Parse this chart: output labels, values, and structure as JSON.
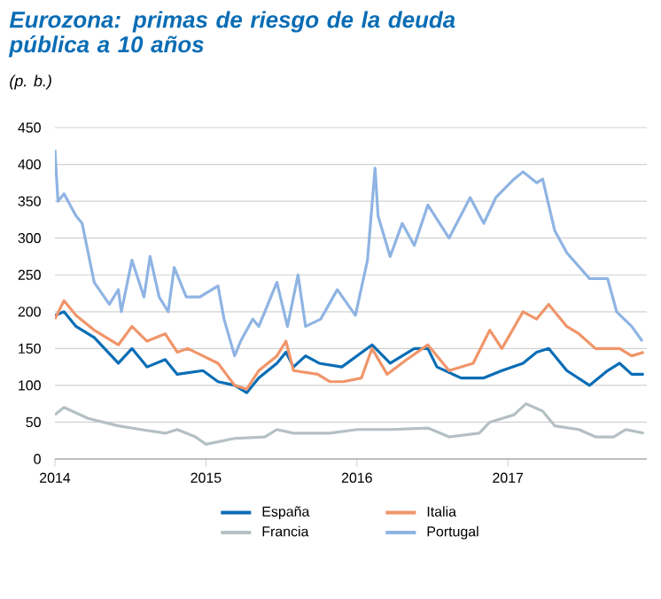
{
  "chart_data": {
    "type": "line",
    "title": "Eurozona: primas de riesgo de la deuda pública a 10 años",
    "subtitle": "(p. b.)",
    "xlim": [
      2014,
      2017.92
    ],
    "xticks": [
      2014,
      2015,
      2016,
      2017
    ],
    "ylim": [
      0,
      450
    ],
    "yticks": [
      0,
      50,
      100,
      150,
      200,
      250,
      300,
      350,
      400,
      450
    ],
    "grid": "y",
    "legend": "bottom",
    "marker": "none",
    "line_style": "solid",
    "series": [
      {
        "name": "España",
        "color": "#0a6db5",
        "x": [
          2014,
          2014.06,
          2014.14,
          2014.26,
          2014.42,
          2014.51,
          2014.61,
          2014.73,
          2014.81,
          2014.98,
          2015.08,
          2015.19,
          2015.27,
          2015.35,
          2015.47,
          2015.53,
          2015.58,
          2015.66,
          2015.75,
          2015.9,
          2016.1,
          2016.22,
          2016.38,
          2016.47,
          2016.53,
          2016.69,
          2016.84,
          2016.96,
          2017.1,
          2017.19,
          2017.27,
          2017.39,
          2017.54,
          2017.66,
          2017.74,
          2017.82,
          2017.9
        ],
        "values": [
          195,
          200,
          180,
          165,
          130,
          150,
          125,
          135,
          115,
          120,
          105,
          100,
          90,
          110,
          130,
          145,
          125,
          140,
          130,
          125,
          155,
          130,
          150,
          150,
          125,
          110,
          110,
          120,
          130,
          145,
          150,
          120,
          100,
          120,
          130,
          115,
          115
        ]
      },
      {
        "name": "Italia",
        "color": "#f0956a",
        "x": [
          2014,
          2014.06,
          2014.14,
          2014.26,
          2014.42,
          2014.51,
          2014.61,
          2014.73,
          2014.81,
          2014.88,
          2014.98,
          2015.08,
          2015.19,
          2015.27,
          2015.35,
          2015.47,
          2015.53,
          2015.58,
          2015.74,
          2015.82,
          2015.91,
          2016.03,
          2016.1,
          2016.2,
          2016.33,
          2016.47,
          2016.61,
          2016.77,
          2016.88,
          2016.96,
          2017.1,
          2017.19,
          2017.27,
          2017.39,
          2017.47,
          2017.58,
          2017.74,
          2017.82,
          2017.9
        ],
        "values": [
          190,
          215,
          195,
          175,
          155,
          180,
          160,
          170,
          145,
          150,
          140,
          130,
          100,
          95,
          120,
          140,
          160,
          120,
          115,
          105,
          105,
          110,
          150,
          115,
          135,
          155,
          120,
          130,
          175,
          150,
          200,
          190,
          210,
          180,
          170,
          150,
          150,
          140,
          145
        ]
      },
      {
        "name": "Francia",
        "color": "#b4c0c4",
        "x": [
          2014,
          2014.06,
          2014.22,
          2014.42,
          2014.57,
          2014.73,
          2014.81,
          2014.93,
          2015.0,
          2015.19,
          2015.39,
          2015.47,
          2015.58,
          2015.82,
          2016.0,
          2016.22,
          2016.47,
          2016.61,
          2016.81,
          2016.88,
          2017.04,
          2017.12,
          2017.23,
          2017.31,
          2017.47,
          2017.58,
          2017.7,
          2017.78,
          2017.9
        ],
        "values": [
          60,
          70,
          55,
          45,
          40,
          35,
          40,
          30,
          20,
          28,
          30,
          40,
          35,
          35,
          40,
          40,
          42,
          30,
          35,
          50,
          60,
          75,
          65,
          45,
          40,
          30,
          30,
          40,
          35
        ]
      },
      {
        "name": "Portugal",
        "color": "#8fb4e3",
        "x": [
          2014,
          2014.02,
          2014.06,
          2014.14,
          2014.18,
          2014.22,
          2014.26,
          2014.36,
          2014.42,
          2014.44,
          2014.51,
          2014.59,
          2014.63,
          2014.69,
          2014.75,
          2014.79,
          2014.87,
          2014.96,
          2015.08,
          2015.12,
          2015.19,
          2015.23,
          2015.31,
          2015.35,
          2015.47,
          2015.54,
          2015.61,
          2015.66,
          2015.76,
          2015.87,
          2015.99,
          2016.07,
          2016.12,
          2016.14,
          2016.22,
          2016.3,
          2016.38,
          2016.47,
          2016.61,
          2016.75,
          2016.84,
          2016.92,
          2017.04,
          2017.1,
          2017.19,
          2017.23,
          2017.31,
          2017.39,
          2017.54,
          2017.66,
          2017.72,
          2017.82,
          2017.89
        ],
        "values": [
          420,
          350,
          360,
          330,
          320,
          280,
          240,
          210,
          230,
          200,
          270,
          220,
          275,
          220,
          200,
          260,
          220,
          220,
          235,
          190,
          140,
          160,
          190,
          180,
          240,
          180,
          250,
          180,
          190,
          230,
          195,
          270,
          395,
          330,
          275,
          320,
          290,
          345,
          300,
          355,
          320,
          355,
          380,
          390,
          375,
          380,
          310,
          280,
          245,
          245,
          200,
          180,
          160
        ]
      }
    ]
  }
}
